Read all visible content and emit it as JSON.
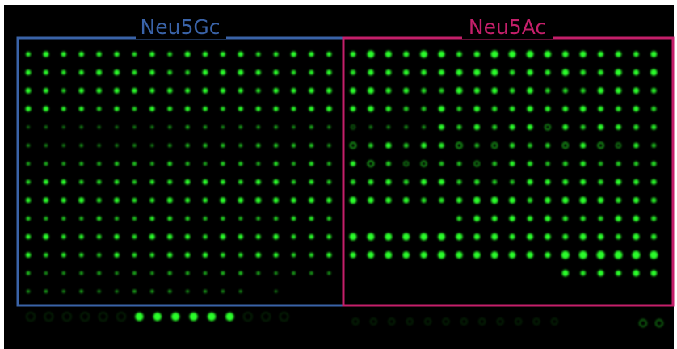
{
  "panels": {
    "left": {
      "label": "Neu5Gc",
      "color": "#3a63a8"
    },
    "right": {
      "label": "Neu5Ac",
      "color": "#c41f6a"
    }
  },
  "colors": {
    "background": "#ffffff",
    "array": "#000000",
    "spot": "#2aff2a"
  },
  "array": {
    "columns_per_panel": 18,
    "framed_rows": 14
  }
}
